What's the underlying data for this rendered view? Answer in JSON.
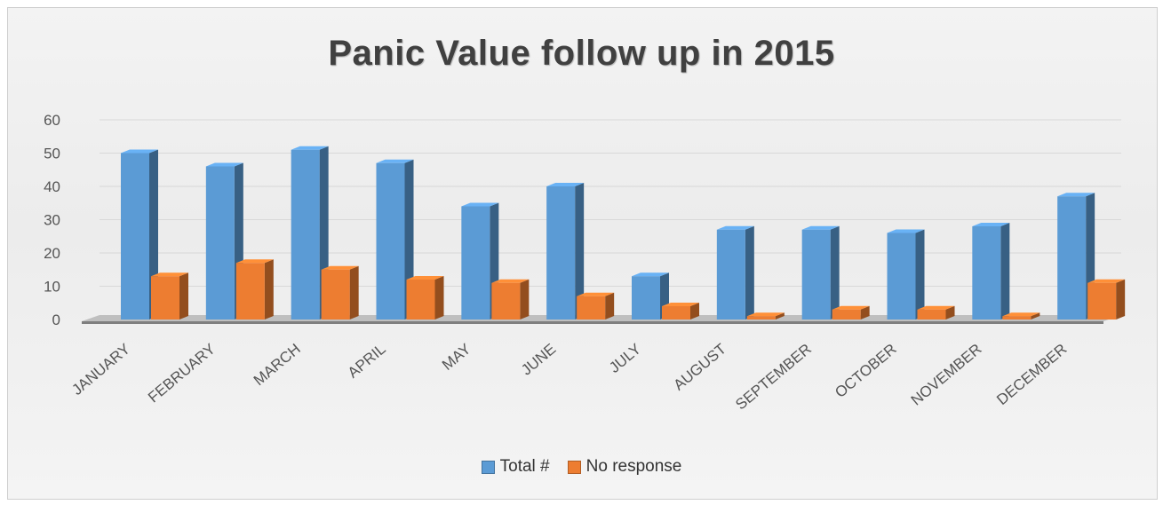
{
  "chart_data": {
    "type": "bar",
    "title": "Panic Value follow up in 2015",
    "categories": [
      "JANUARY",
      "FEBRUARY",
      "MARCH",
      "APRIL",
      "MAY",
      "JUNE",
      "JULY",
      "AUGUST",
      "SEPTEMBER",
      "OCTOBER",
      "NOVEMBER",
      "DECEMBER"
    ],
    "series": [
      {
        "name": "Total #",
        "color": "#5b9bd5",
        "values": [
          50,
          46,
          51,
          47,
          34,
          40,
          13,
          27,
          27,
          26,
          28,
          37
        ]
      },
      {
        "name": "No response",
        "color": "#ed7d31",
        "values": [
          13,
          17,
          15,
          12,
          11,
          7,
          4,
          1,
          3,
          3,
          1,
          11
        ]
      }
    ],
    "ylim": [
      0,
      60
    ],
    "yticks": [
      "0",
      "10",
      "20",
      "30",
      "40",
      "50",
      "60"
    ],
    "grid": true,
    "legend_position": "bottom",
    "style": "3d-clustered-column"
  }
}
